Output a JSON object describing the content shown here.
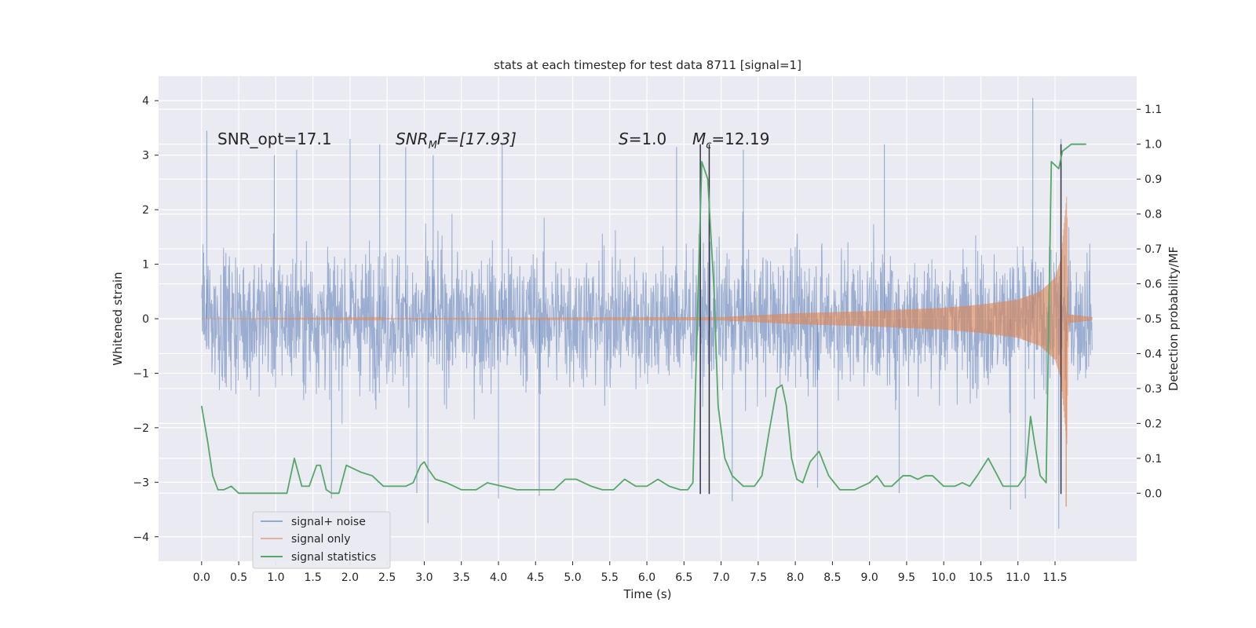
{
  "chart_data": {
    "type": "line",
    "title": "stats at each timestep for test data 8711 [signal=1]",
    "xlabel": "Time (s)",
    "ylabel_left": "Whitened strain",
    "ylabel_right": "Detection probability/MF",
    "xlim": [
      -0.58,
      12.6
    ],
    "ylim_left": [
      -4.45,
      4.45
    ],
    "ylim_right": [
      -0.195,
      1.195
    ],
    "grid": true,
    "background": "#eaeaf2",
    "x_ticks": [
      0.0,
      0.5,
      1.0,
      1.5,
      2.0,
      2.5,
      3.0,
      3.5,
      4.0,
      4.5,
      5.0,
      5.5,
      6.0,
      6.5,
      7.0,
      7.5,
      8.0,
      8.5,
      9.0,
      9.5,
      10.0,
      10.5,
      11.0,
      11.5
    ],
    "x_tick_labels": [
      "0.0",
      "0.5",
      "1.0",
      "1.5",
      "2.0",
      "2.5",
      "3.0",
      "3.5",
      "4.0",
      "4.5",
      "5.0",
      "5.5",
      "6.0",
      "6.5",
      "7.0",
      "7.5",
      "8.0",
      "8.5",
      "9.0",
      "9.5",
      "10.0",
      "10.5",
      "11.0",
      "11.5"
    ],
    "y_left_ticks": [
      -4,
      -3,
      -2,
      -1,
      0,
      1,
      2,
      3,
      4
    ],
    "y_left_tick_labels": [
      "−4",
      "−3",
      "−2",
      "−1",
      "0",
      "1",
      "2",
      "3",
      "4"
    ],
    "y_right_ticks": [
      0.0,
      0.1,
      0.2,
      0.3,
      0.4,
      0.5,
      0.6,
      0.7,
      0.8,
      0.9,
      1.0,
      1.1
    ],
    "y_right_tick_labels": [
      "0.0",
      "0.1",
      "0.2",
      "0.3",
      "0.4",
      "0.5",
      "0.6",
      "0.7",
      "0.8",
      "0.9",
      "1.0",
      "1.1"
    ],
    "annotations": {
      "snr_opt": "SNR_opt=17.1",
      "snr_mf_base": "SNR",
      "snr_mf_sub": "M",
      "snr_mf_rest": "F=[17.93]",
      "s_base": "S",
      "s_rest": "=1.0",
      "mc_base": "M",
      "mc_sub": "c",
      "mc_rest": "=12.19"
    },
    "vlines": [
      6.72,
      6.84,
      11.58
    ],
    "legend": {
      "placement": "lower-left",
      "entries": [
        "signal+ noise",
        "signal only",
        "signal statistics"
      ]
    },
    "colors": {
      "signal_noise": "#4c72b0",
      "signal_only": "#dd8452",
      "statistics": "#55a868",
      "vline": "#333344"
    },
    "series": [
      {
        "name": "signal+ noise",
        "kind": "noise-band",
        "x_range": [
          0.0,
          12.0
        ],
        "envelope_typical": [
          -2.0,
          2.1
        ],
        "peak_samples": [
          [
            0.07,
            3.45
          ],
          [
            0.98,
            3.0
          ],
          [
            1.28,
            3.1
          ],
          [
            2.0,
            3.3
          ],
          [
            2.4,
            3.2
          ],
          [
            2.75,
            3.15
          ],
          [
            3.12,
            3.0
          ],
          [
            4.05,
            3.2
          ],
          [
            6.4,
            3.15
          ],
          [
            7.3,
            3.1
          ],
          [
            9.2,
            3.2
          ],
          [
            11.2,
            4.05
          ],
          [
            11.58,
            3.3
          ],
          [
            1.75,
            -3.3
          ],
          [
            2.9,
            -3.2
          ],
          [
            3.05,
            -3.75
          ],
          [
            4.0,
            -3.3
          ],
          [
            4.55,
            -3.25
          ],
          [
            7.15,
            -3.35
          ],
          [
            8.3,
            -3.1
          ],
          [
            9.4,
            -3.2
          ],
          [
            10.9,
            -3.5
          ],
          [
            11.1,
            -3.3
          ],
          [
            11.55,
            -3.85
          ]
        ]
      },
      {
        "name": "signal only",
        "kind": "chirp",
        "x": [
          0.0,
          7.0,
          8.0,
          9.0,
          9.5,
          10.0,
          10.5,
          11.0,
          11.3,
          11.5,
          11.58,
          11.62,
          11.66,
          11.68,
          12.0
        ],
        "amplitude": [
          0.0,
          0.03,
          0.1,
          0.14,
          0.17,
          0.2,
          0.26,
          0.35,
          0.5,
          0.75,
          1.1,
          1.7,
          2.3,
          0.08,
          0.03
        ],
        "min_dip": [
          11.65,
          -3.45
        ]
      },
      {
        "name": "signal statistics",
        "kind": "line",
        "x": [
          0.0,
          0.08,
          0.15,
          0.22,
          0.3,
          0.4,
          0.5,
          0.6,
          0.75,
          0.9,
          1.0,
          1.1,
          1.15,
          1.25,
          1.35,
          1.45,
          1.55,
          1.6,
          1.68,
          1.75,
          1.85,
          1.95,
          2.05,
          2.15,
          2.3,
          2.45,
          2.6,
          2.75,
          2.85,
          2.95,
          3.0,
          3.05,
          3.15,
          3.3,
          3.5,
          3.7,
          3.85,
          4.05,
          4.25,
          4.5,
          4.75,
          4.9,
          5.05,
          5.25,
          5.4,
          5.55,
          5.7,
          5.85,
          6.0,
          6.15,
          6.3,
          6.45,
          6.55,
          6.62,
          6.68,
          6.74,
          6.82,
          6.9,
          6.96,
          7.05,
          7.15,
          7.3,
          7.45,
          7.55,
          7.65,
          7.75,
          7.82,
          7.88,
          7.95,
          8.02,
          8.1,
          8.2,
          8.32,
          8.45,
          8.6,
          8.8,
          9.0,
          9.1,
          9.2,
          9.3,
          9.45,
          9.55,
          9.65,
          9.75,
          9.85,
          10.0,
          10.15,
          10.25,
          10.35,
          10.45,
          10.6,
          10.8,
          11.0,
          11.1,
          11.17,
          11.22,
          11.3,
          11.38,
          11.45,
          11.55,
          11.6,
          11.66,
          11.72,
          11.82,
          11.92
        ],
        "values": [
          0.25,
          0.15,
          0.05,
          0.01,
          0.01,
          0.02,
          0.0,
          0.0,
          0.0,
          0.0,
          0.0,
          0.0,
          0.0,
          0.1,
          0.02,
          0.02,
          0.08,
          0.08,
          0.01,
          0.0,
          0.0,
          0.08,
          0.07,
          0.06,
          0.05,
          0.02,
          0.02,
          0.02,
          0.03,
          0.08,
          0.09,
          0.07,
          0.04,
          0.03,
          0.01,
          0.01,
          0.03,
          0.02,
          0.01,
          0.01,
          0.01,
          0.04,
          0.04,
          0.02,
          0.01,
          0.01,
          0.04,
          0.02,
          0.02,
          0.04,
          0.02,
          0.01,
          0.01,
          0.03,
          0.5,
          0.95,
          0.9,
          0.6,
          0.25,
          0.1,
          0.05,
          0.02,
          0.02,
          0.05,
          0.18,
          0.3,
          0.31,
          0.25,
          0.1,
          0.04,
          0.03,
          0.09,
          0.12,
          0.05,
          0.01,
          0.01,
          0.03,
          0.05,
          0.02,
          0.02,
          0.05,
          0.05,
          0.04,
          0.05,
          0.05,
          0.02,
          0.02,
          0.03,
          0.02,
          0.05,
          0.1,
          0.02,
          0.02,
          0.05,
          0.22,
          0.15,
          0.05,
          0.03,
          0.95,
          0.93,
          0.98,
          0.99,
          1.0,
          1.0,
          1.0
        ]
      }
    ]
  }
}
